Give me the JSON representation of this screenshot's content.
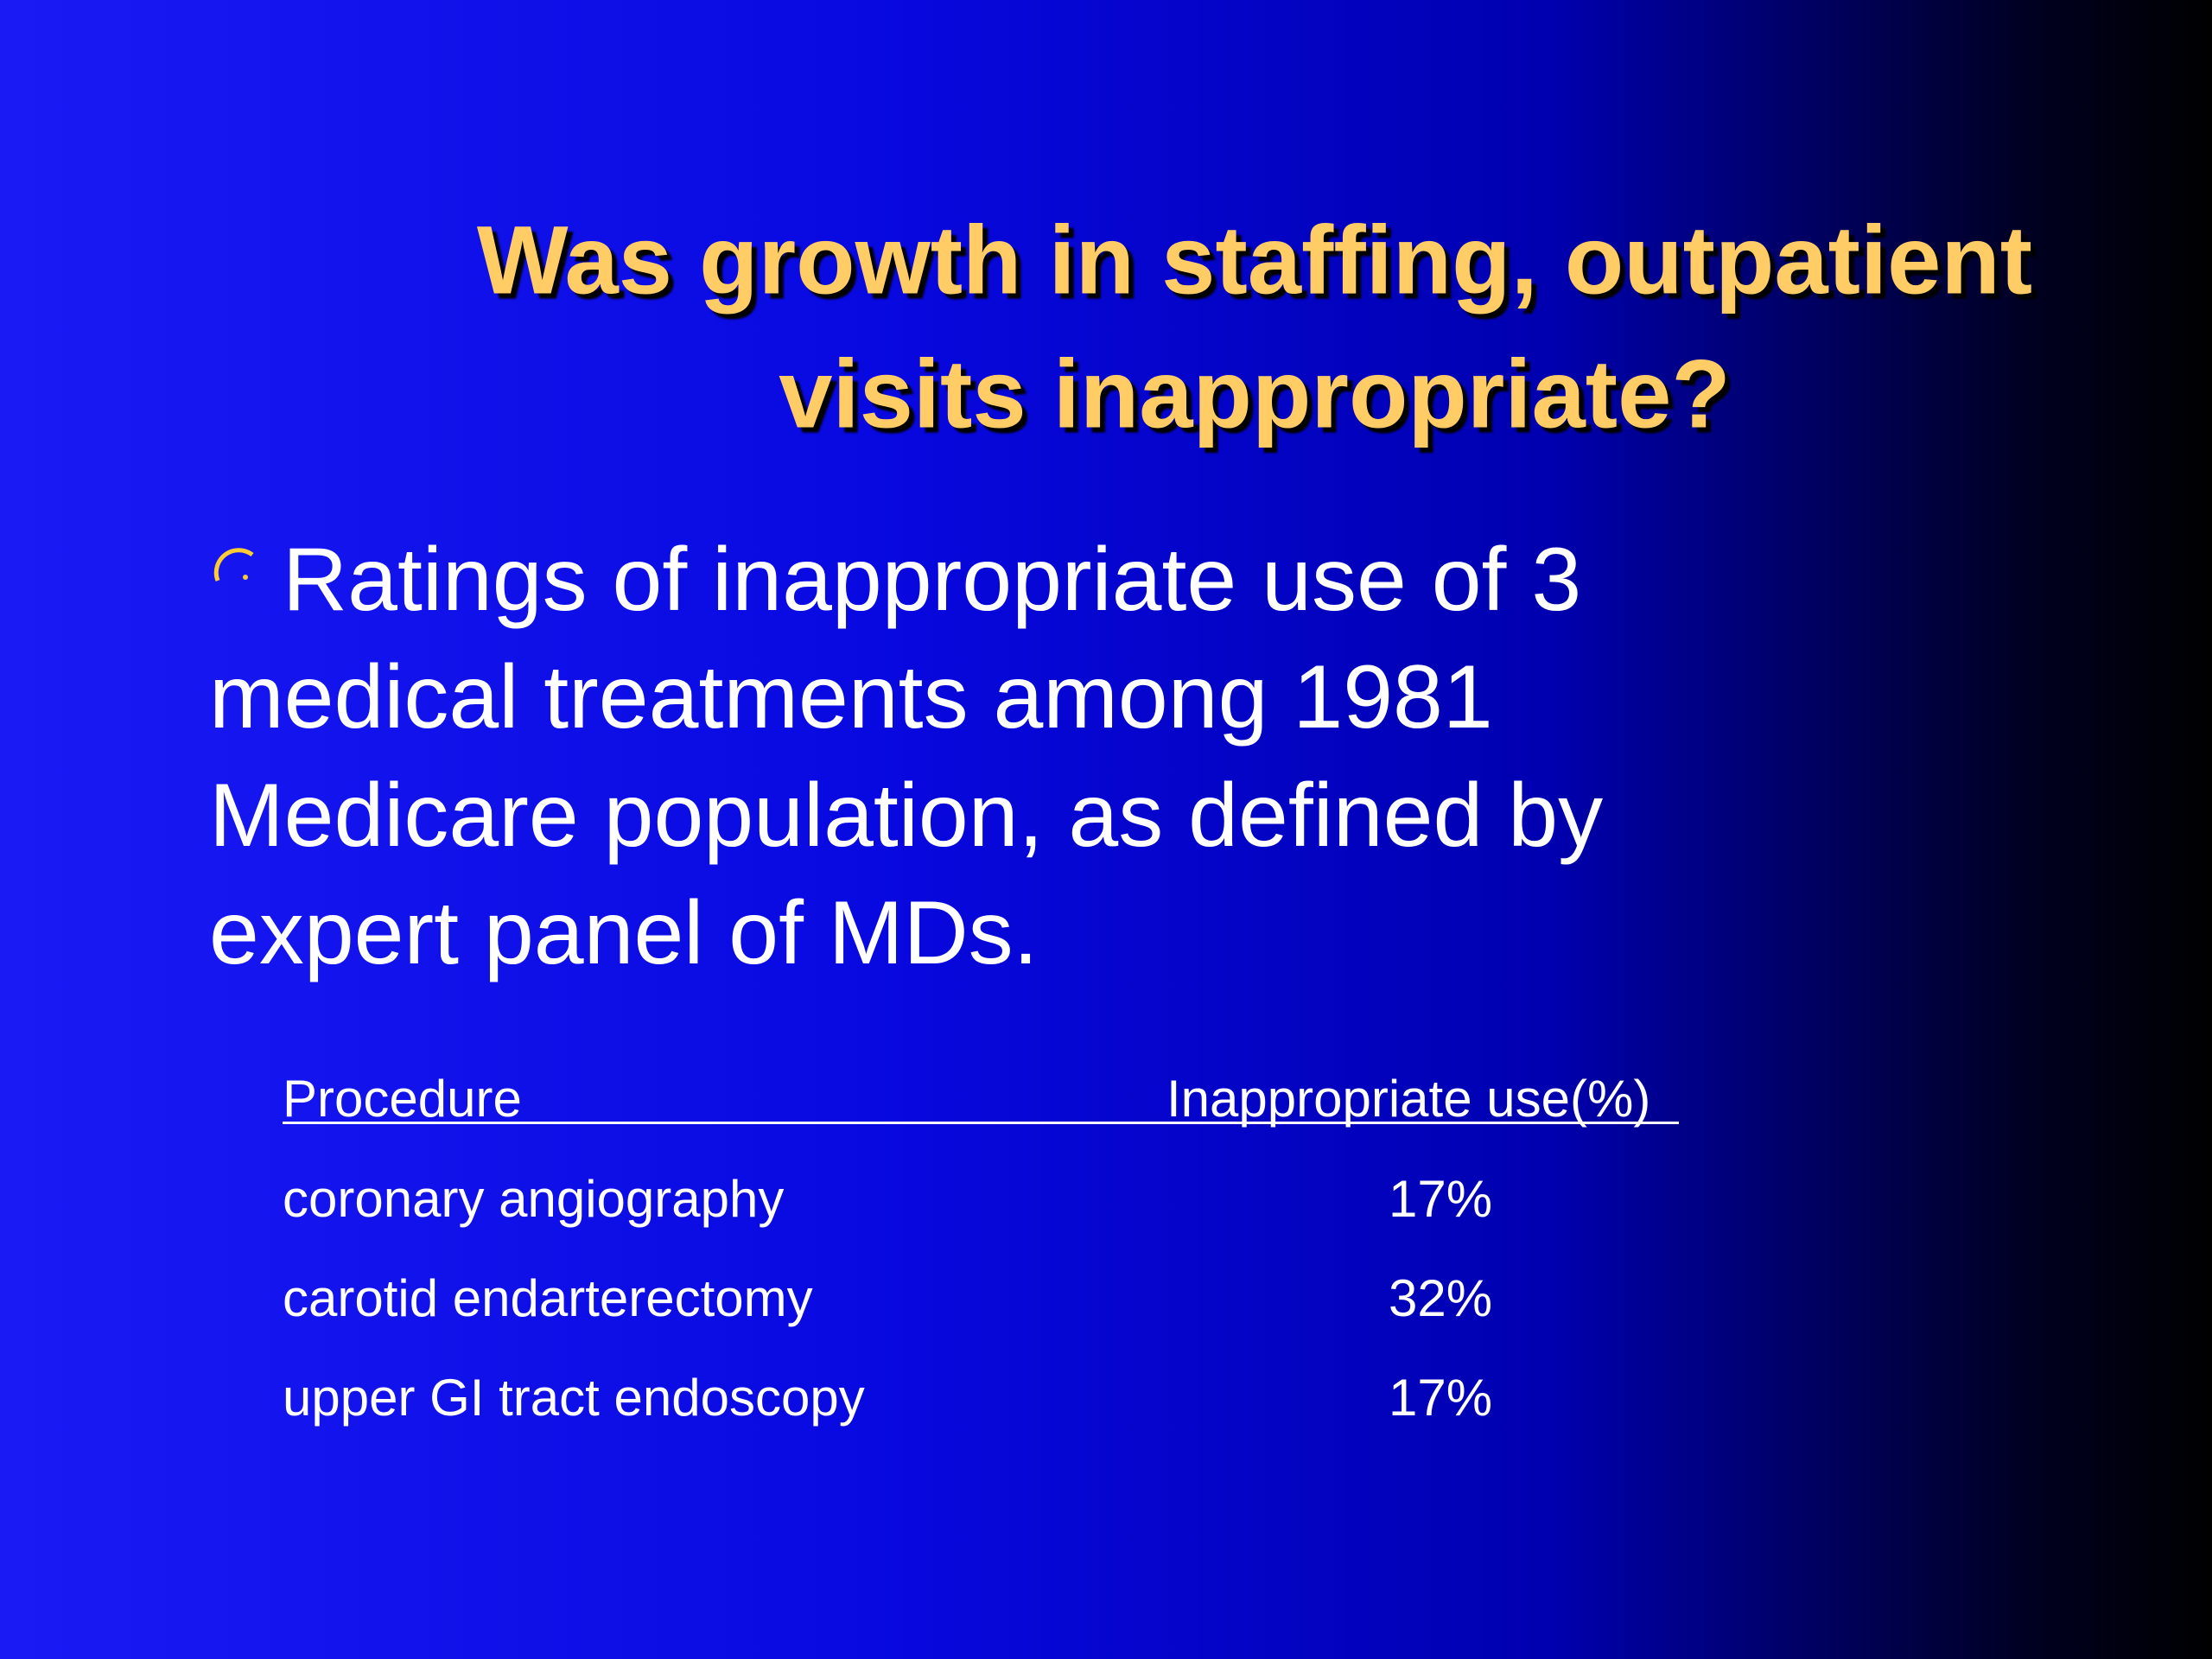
{
  "title_lines": [
    "Was growth in staffing, outpatient",
    "visits inappropriate?"
  ],
  "bullet_lines": [
    "Ratings of inappropriate use of 3",
    "medical treatments among 1981",
    "Medicare population, as defined by",
    "expert panel of MDs."
  ],
  "table": {
    "header": [
      "Procedure",
      "Inappropriate use(%)"
    ],
    "rows": [
      [
        "coronary angiography",
        "17%"
      ],
      [
        "carotid endarterectomy",
        "32%"
      ],
      [
        "upper GI tract endoscopy",
        "17%"
      ]
    ]
  }
}
